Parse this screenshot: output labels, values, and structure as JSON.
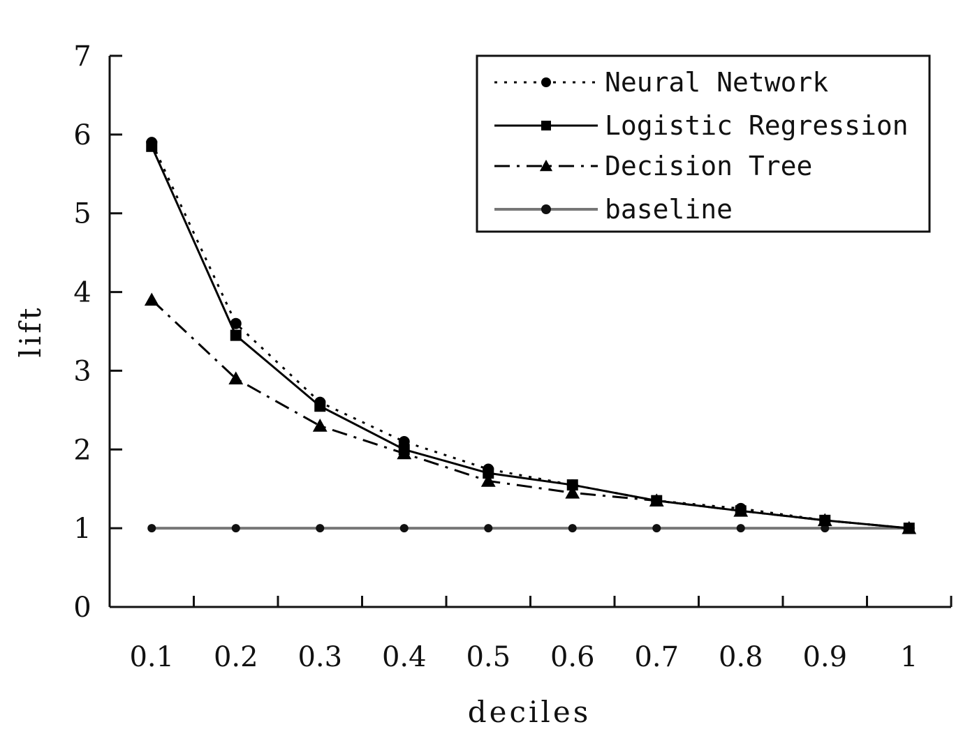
{
  "chart_data": {
    "type": "line",
    "xlabel": "deciles",
    "ylabel": "lift",
    "x": [
      "0.1",
      "0.2",
      "0.3",
      "0.4",
      "0.5",
      "0.6",
      "0.7",
      "0.8",
      "0.9",
      "1"
    ],
    "ylim": [
      0,
      7
    ],
    "yticks": [
      "0",
      "1",
      "2",
      "3",
      "4",
      "5",
      "6",
      "7"
    ],
    "grid": false,
    "legend_position": "top-right",
    "series": [
      {
        "name": "Neural Network",
        "style": "dotted",
        "marker": "circle",
        "color": "#000000",
        "values": [
          5.9,
          3.6,
          2.6,
          2.1,
          1.75,
          1.55,
          1.35,
          1.25,
          1.1,
          1.0
        ]
      },
      {
        "name": "Logistic Regression",
        "style": "solid",
        "marker": "square",
        "color": "#000000",
        "values": [
          5.85,
          3.45,
          2.55,
          2.0,
          1.7,
          1.55,
          1.35,
          1.22,
          1.1,
          1.0
        ]
      },
      {
        "name": "Decision Tree",
        "style": "dashdot",
        "marker": "triangle",
        "color": "#000000",
        "values": [
          3.9,
          2.9,
          2.3,
          1.95,
          1.6,
          1.45,
          1.35,
          1.22,
          1.1,
          1.0
        ]
      },
      {
        "name": "baseline",
        "style": "solid-thick",
        "marker": "circle",
        "color": "#777777",
        "values": [
          1,
          1,
          1,
          1,
          1,
          1,
          1,
          1,
          1,
          1
        ]
      }
    ]
  }
}
